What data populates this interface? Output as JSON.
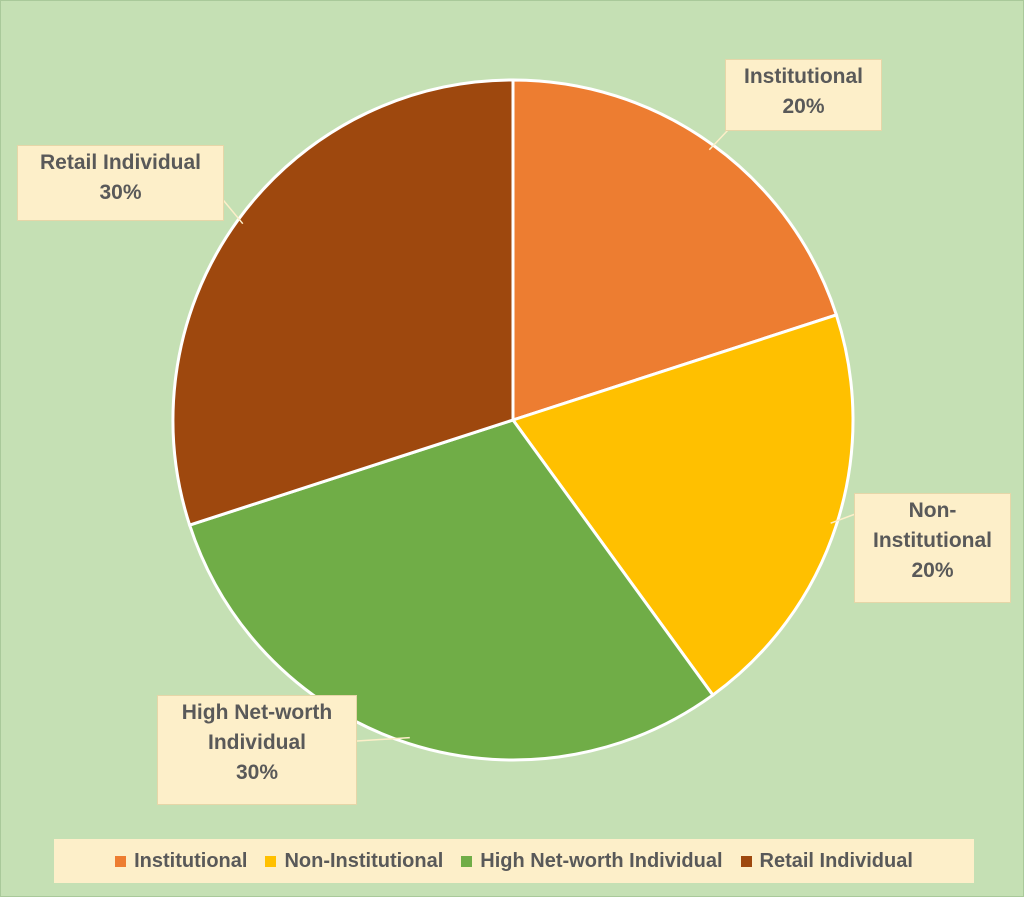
{
  "chart_data": {
    "type": "pie",
    "title": "",
    "slices": [
      {
        "label": "Institutional",
        "label_lines": [
          "Institutional"
        ],
        "value": 20,
        "value_label": "20%",
        "color": "#ed7d31"
      },
      {
        "label": "Non-Institutional",
        "label_lines": [
          "Non-",
          "Institutional"
        ],
        "value": 20,
        "value_label": "20%",
        "color": "#ffc000"
      },
      {
        "label": "High Net-worth Individual",
        "label_lines": [
          "High Net-worth",
          "Individual"
        ],
        "value": 30,
        "value_label": "30%",
        "color": "#70ad47"
      },
      {
        "label": "Retail Individual",
        "label_lines": [
          "Retail Individual"
        ],
        "value": 30,
        "value_label": "30%",
        "color": "#9e480e"
      }
    ],
    "legend_position": "bottom",
    "start_angle": "12 o'clock",
    "direction": "clockwise"
  },
  "colors": {
    "background": "#c5e0b4",
    "callout_fill": "#fdefc9",
    "text": "#595959"
  }
}
